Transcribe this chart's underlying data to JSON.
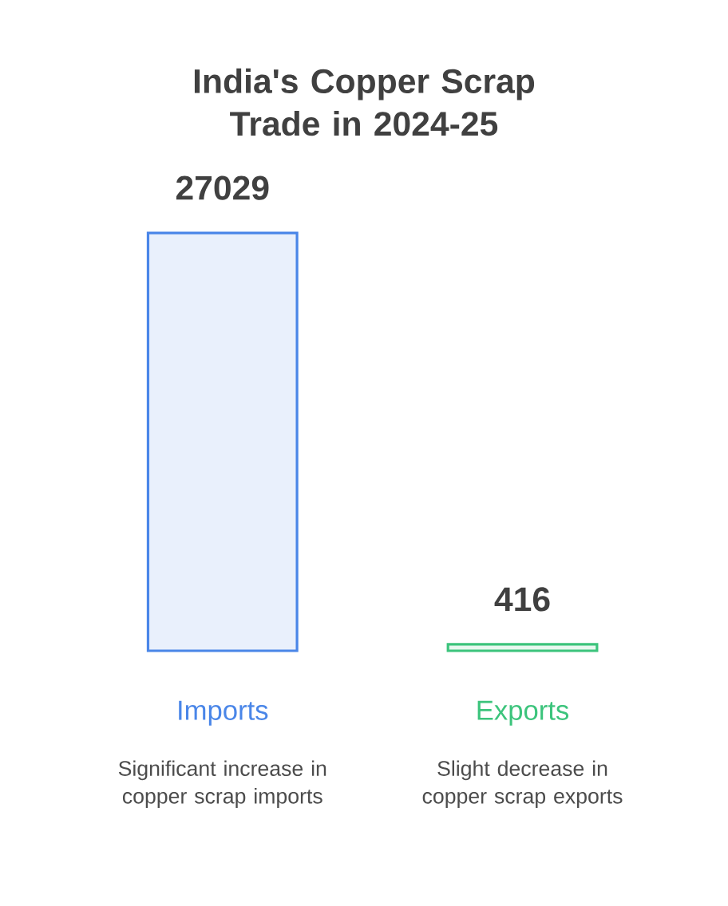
{
  "chart_data": {
    "type": "bar",
    "title": "India's Copper Scrap Trade in 2024-25",
    "categories": [
      "Imports",
      "Exports"
    ],
    "values": [
      27029,
      416
    ],
    "colors": [
      "#4a86e8",
      "#3cc47c"
    ],
    "data_labels": true,
    "annotations": [
      "Significant increase in copper scrap imports",
      "Slight decrease in copper scrap exports"
    ]
  }
}
